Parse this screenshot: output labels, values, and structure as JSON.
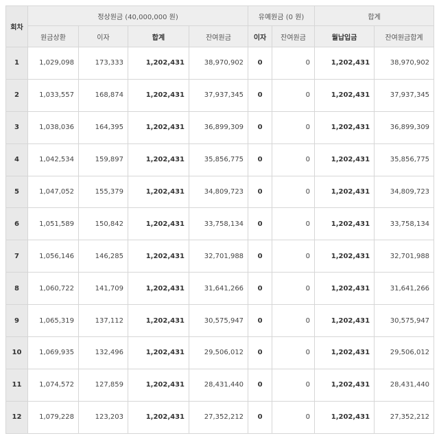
{
  "headers": {
    "round": "회차",
    "regular_group": "정상원금 (40,000,000 원)",
    "grace_group": "유예원금 (0 원)",
    "total_group": "합계",
    "regular": {
      "principal_repayment": "원금상환",
      "interest": "이자",
      "subtotal": "합계",
      "remaining_principal": "잔여원금"
    },
    "grace": {
      "interest": "이자",
      "remaining_principal": "잔여원금"
    },
    "total": {
      "monthly_payment": "월납입금",
      "remaining_principal_total": "잔여원금합계"
    }
  },
  "rows": [
    {
      "round": "1",
      "principal": "1,029,098",
      "interest": "173,333",
      "subtotal": "1,202,431",
      "remaining": "38,970,902",
      "grace_interest": "0",
      "grace_remaining": "0",
      "monthly_payment": "1,202,431",
      "remaining_total": "38,970,902"
    },
    {
      "round": "2",
      "principal": "1,033,557",
      "interest": "168,874",
      "subtotal": "1,202,431",
      "remaining": "37,937,345",
      "grace_interest": "0",
      "grace_remaining": "0",
      "monthly_payment": "1,202,431",
      "remaining_total": "37,937,345"
    },
    {
      "round": "3",
      "principal": "1,038,036",
      "interest": "164,395",
      "subtotal": "1,202,431",
      "remaining": "36,899,309",
      "grace_interest": "0",
      "grace_remaining": "0",
      "monthly_payment": "1,202,431",
      "remaining_total": "36,899,309"
    },
    {
      "round": "4",
      "principal": "1,042,534",
      "interest": "159,897",
      "subtotal": "1,202,431",
      "remaining": "35,856,775",
      "grace_interest": "0",
      "grace_remaining": "0",
      "monthly_payment": "1,202,431",
      "remaining_total": "35,856,775"
    },
    {
      "round": "5",
      "principal": "1,047,052",
      "interest": "155,379",
      "subtotal": "1,202,431",
      "remaining": "34,809,723",
      "grace_interest": "0",
      "grace_remaining": "0",
      "monthly_payment": "1,202,431",
      "remaining_total": "34,809,723"
    },
    {
      "round": "6",
      "principal": "1,051,589",
      "interest": "150,842",
      "subtotal": "1,202,431",
      "remaining": "33,758,134",
      "grace_interest": "0",
      "grace_remaining": "0",
      "monthly_payment": "1,202,431",
      "remaining_total": "33,758,134"
    },
    {
      "round": "7",
      "principal": "1,056,146",
      "interest": "146,285",
      "subtotal": "1,202,431",
      "remaining": "32,701,988",
      "grace_interest": "0",
      "grace_remaining": "0",
      "monthly_payment": "1,202,431",
      "remaining_total": "32,701,988"
    },
    {
      "round": "8",
      "principal": "1,060,722",
      "interest": "141,709",
      "subtotal": "1,202,431",
      "remaining": "31,641,266",
      "grace_interest": "0",
      "grace_remaining": "0",
      "monthly_payment": "1,202,431",
      "remaining_total": "31,641,266"
    },
    {
      "round": "9",
      "principal": "1,065,319",
      "interest": "137,112",
      "subtotal": "1,202,431",
      "remaining": "30,575,947",
      "grace_interest": "0",
      "grace_remaining": "0",
      "monthly_payment": "1,202,431",
      "remaining_total": "30,575,947"
    },
    {
      "round": "10",
      "principal": "1,069,935",
      "interest": "132,496",
      "subtotal": "1,202,431",
      "remaining": "29,506,012",
      "grace_interest": "0",
      "grace_remaining": "0",
      "monthly_payment": "1,202,431",
      "remaining_total": "29,506,012"
    },
    {
      "round": "11",
      "principal": "1,074,572",
      "interest": "127,859",
      "subtotal": "1,202,431",
      "remaining": "28,431,440",
      "grace_interest": "0",
      "grace_remaining": "0",
      "monthly_payment": "1,202,431",
      "remaining_total": "28,431,440"
    },
    {
      "round": "12",
      "principal": "1,079,228",
      "interest": "123,203",
      "subtotal": "1,202,431",
      "remaining": "27,352,212",
      "grace_interest": "0",
      "grace_remaining": "0",
      "monthly_payment": "1,202,431",
      "remaining_total": "27,352,212"
    }
  ]
}
